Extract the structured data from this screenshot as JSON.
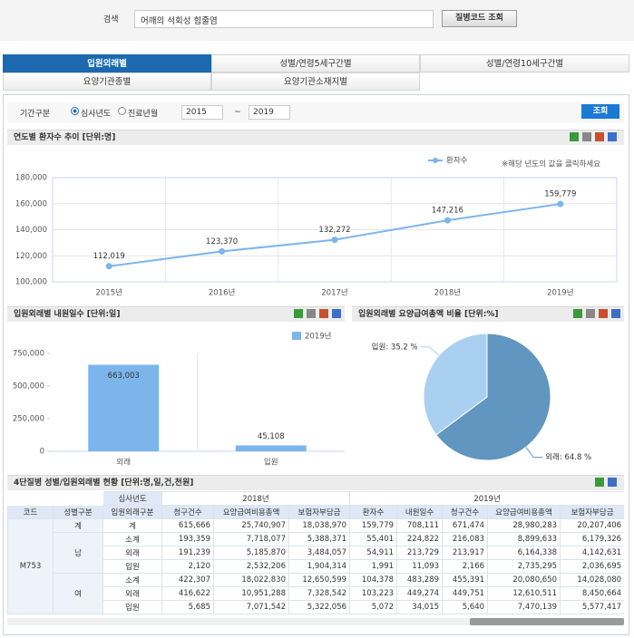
{
  "search": {
    "label": "검색",
    "query": "어깨의 석회성 힘줄염",
    "button": "질병코드 조회"
  },
  "tabs": [
    "입원외래별",
    "성별/연령5세구간별",
    "성별/연령10세구간별",
    "요양기관종별",
    "요양기관소재지별"
  ],
  "filter": {
    "label": "기간구분",
    "options": [
      "심사년도",
      "진료년월"
    ],
    "from": "2015",
    "tilde": "~",
    "to": "2019",
    "button": "조회"
  },
  "chart_data": [
    {
      "type": "line",
      "title": "연도별 환자수 추이 [단위:명]",
      "note": "※해당 년도의 값을 클릭하세요",
      "categories": [
        "2015년",
        "2016년",
        "2017년",
        "2018년",
        "2019년"
      ],
      "series": [
        {
          "name": "환자수",
          "color": "#7cb5ec",
          "values": [
            112019,
            123370,
            132272,
            147216,
            159779
          ],
          "value_labels": [
            "112,019",
            "123,370",
            "132,272",
            "147,216",
            "159,779"
          ]
        }
      ],
      "ylim": [
        100000,
        180000
      ],
      "yticks": [
        {
          "value": 100000,
          "label": "100,000"
        },
        {
          "value": 120000,
          "label": "120,000"
        },
        {
          "value": 140000,
          "label": "140,000"
        },
        {
          "value": 160000,
          "label": "160,000"
        },
        {
          "value": 180000,
          "label": "180,000"
        }
      ],
      "grid": true
    },
    {
      "type": "bar",
      "title": "입원외래별 내원일수 [단위:일]",
      "categories": [
        "외래",
        "입원"
      ],
      "series": [
        {
          "name": "2019년",
          "color": "#7cb5ec",
          "values": [
            663003,
            45108
          ],
          "value_labels": [
            "663,003",
            "45,108"
          ]
        }
      ],
      "ylim": [
        0,
        750000
      ],
      "yticks": [
        0,
        {
          "value": 250000,
          "label": "250,000"
        },
        {
          "value": 500000,
          "label": "500,000"
        },
        {
          "value": 750000,
          "label": "750,000"
        }
      ],
      "grid": false
    },
    {
      "type": "pie",
      "title": "입원외래별 요양급여총액 비율 [단위:%]",
      "categories": [
        "외래",
        "입원"
      ],
      "values": [
        64.8,
        35.2
      ],
      "value_labels": [
        "외래: 64.8 %",
        "입원: 35.2 %"
      ],
      "colors": [
        "#6096c0",
        "#a9d0f0"
      ]
    }
  ],
  "table": {
    "title": "4단질병 성별/입원외래별 현황 [단위:명,일,건,천원]",
    "group_header": "심사년도",
    "key_columns": [
      "코드",
      "성별구분",
      "입원외래구분"
    ],
    "years": [
      {
        "label": "2018년",
        "columns": [
          "청구건수",
          "요양급여비용총액",
          "보험자부담금"
        ]
      },
      {
        "label": "2019년",
        "columns": [
          "환자수",
          "내원일수",
          "청구건수",
          "요양급여비용총액",
          "보험자부담금"
        ]
      }
    ],
    "code": "M753",
    "groups": [
      {
        "sex": "계",
        "rows": [
          {
            "type": "계",
            "cells": [
              "615,666",
              "25,740,907",
              "18,038,970",
              "159,779",
              "708,111",
              "671,474",
              "28,980,283",
              "20,207,406"
            ]
          }
        ]
      },
      {
        "sex": "남",
        "rows": [
          {
            "type": "소계",
            "cells": [
              "193,359",
              "7,718,077",
              "5,388,371",
              "55,401",
              "224,822",
              "216,083",
              "8,899,633",
              "6,179,326"
            ]
          },
          {
            "type": "외래",
            "cells": [
              "191,239",
              "5,185,870",
              "3,484,057",
              "54,911",
              "213,729",
              "213,917",
              "6,164,338",
              "4,142,631"
            ]
          },
          {
            "type": "입원",
            "cells": [
              "2,120",
              "2,532,206",
              "1,904,314",
              "1,991",
              "11,093",
              "2,166",
              "2,735,295",
              "2,036,695"
            ]
          }
        ]
      },
      {
        "sex": "여",
        "rows": [
          {
            "type": "소계",
            "cells": [
              "422,307",
              "18,022,830",
              "12,650,599",
              "104,378",
              "483,289",
              "455,391",
              "20,080,650",
              "14,028,080"
            ]
          },
          {
            "type": "외래",
            "cells": [
              "416,622",
              "10,951,288",
              "7,328,542",
              "103,223",
              "449,274",
              "449,751",
              "12,610,511",
              "8,450,664"
            ]
          },
          {
            "type": "입원",
            "cells": [
              "5,685",
              "7,071,542",
              "5,322,056",
              "5,072",
              "34,015",
              "5,640",
              "7,470,139",
              "5,577,417"
            ]
          }
        ]
      }
    ]
  }
}
